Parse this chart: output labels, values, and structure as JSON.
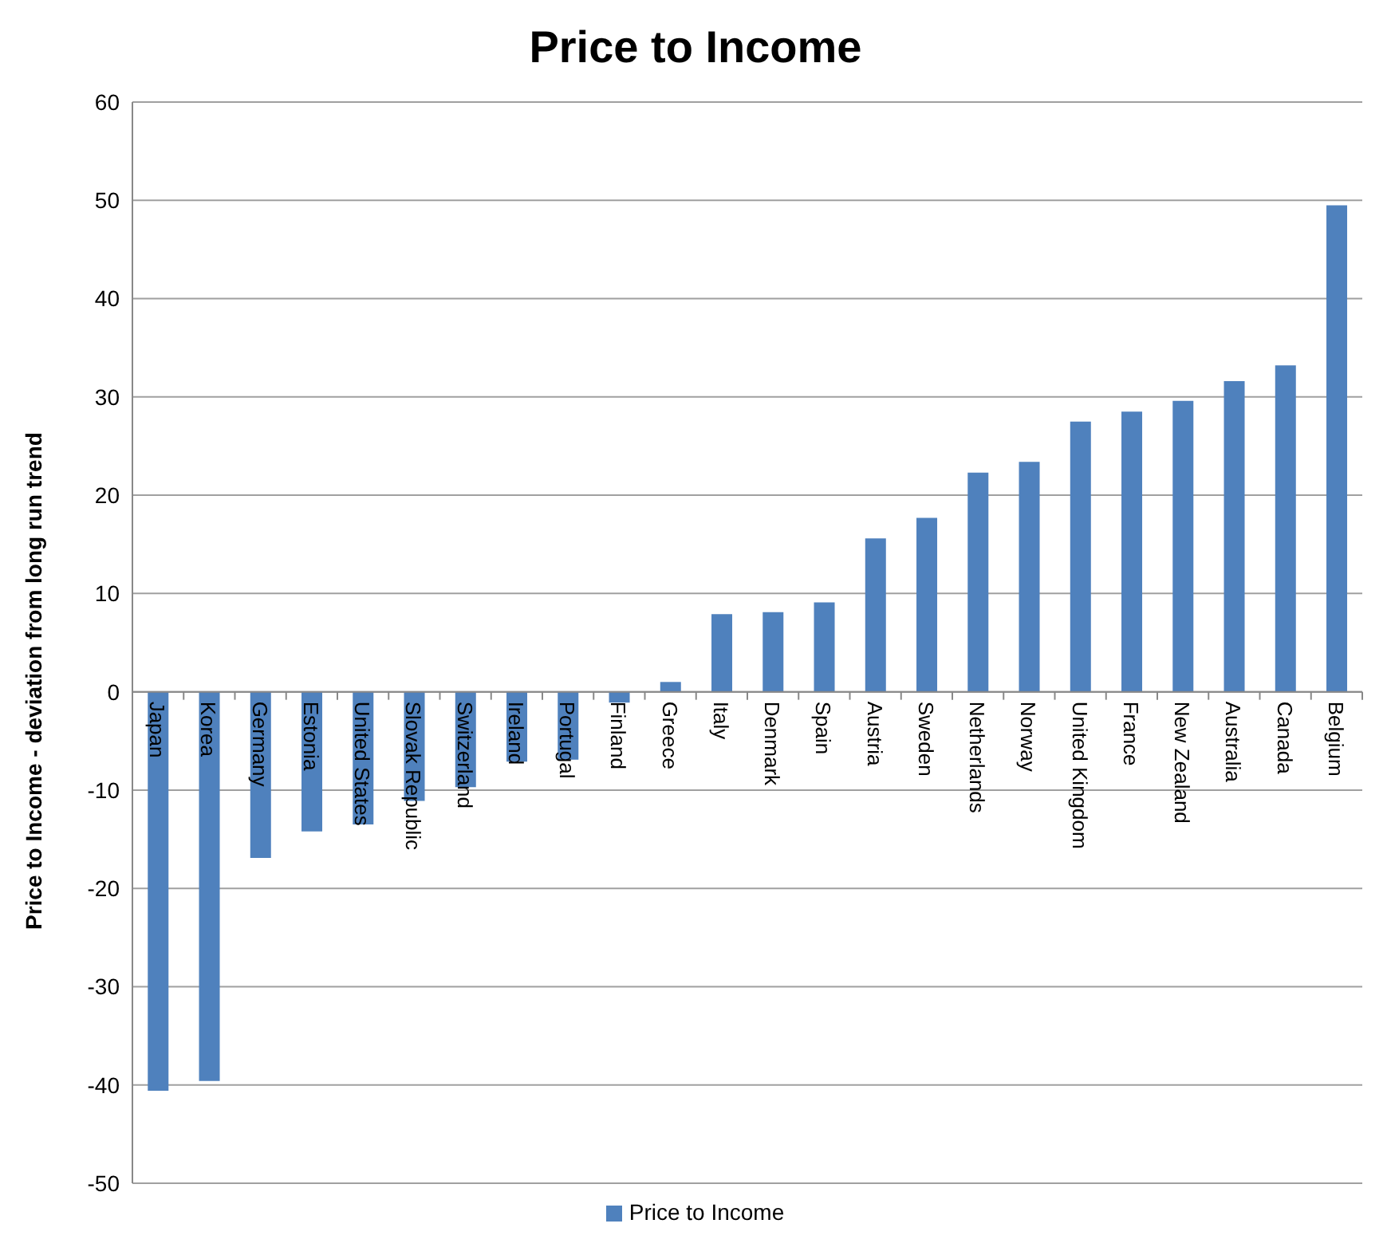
{
  "chart_data": {
    "type": "bar",
    "title": "Price to Income",
    "ylabel": "Price to Income - deviation from long run trend",
    "categories": [
      "Japan",
      "Korea",
      "Germany",
      "Estonia",
      "United States",
      "Slovak Republic",
      "Switzerland",
      "Ireland",
      "Portugal",
      "Finland",
      "Greece",
      "Italy",
      "Denmark",
      "Spain",
      "Austria",
      "Sweden",
      "Netherlands",
      "Norway",
      "United Kingdom",
      "France",
      "New Zealand",
      "Australia",
      "Canada",
      "Belgium"
    ],
    "series": [
      {
        "name": "Price to Income",
        "color": "#4f81bd",
        "values": [
          -40.6,
          -39.6,
          -16.9,
          -14.2,
          -13.5,
          -11.1,
          -9.7,
          -7.1,
          -6.9,
          -1.1,
          1.0,
          7.9,
          8.1,
          9.1,
          15.6,
          17.7,
          22.3,
          23.4,
          27.5,
          28.5,
          29.6,
          31.6,
          33.2,
          49.5
        ]
      }
    ],
    "ylim": [
      -50,
      60
    ],
    "yticks": [
      -50,
      -40,
      -30,
      -20,
      -10,
      0,
      10,
      20,
      30,
      40,
      50,
      60
    ],
    "grid": "y",
    "legend": "bottom"
  }
}
